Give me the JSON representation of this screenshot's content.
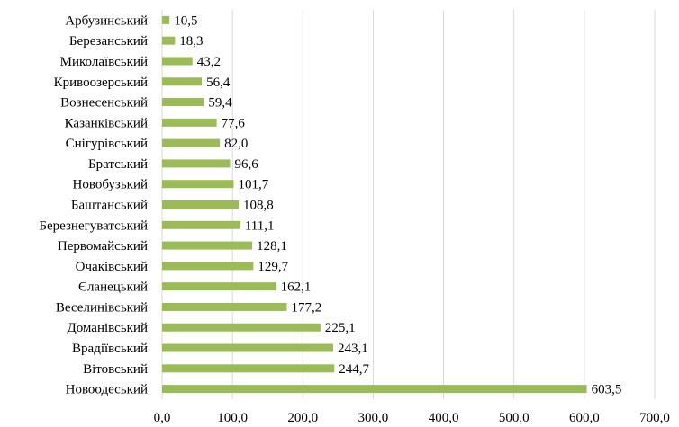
{
  "chart_data": {
    "type": "bar",
    "orientation": "horizontal",
    "categories": [
      "Арбузинський",
      "Березанський",
      "Миколаївський",
      "Кривоозерський",
      "Вознесенський",
      "Казанківський",
      "Снігурівський",
      "Братський",
      "Новобузький",
      "Баштанський",
      "Березнегуватський",
      "Первомайський",
      "Очаківський",
      "Єланецький",
      "Веселинівський",
      "Доманівський",
      "Врадіївський",
      "Вітовський",
      "Новоодеський"
    ],
    "values": [
      10.5,
      18.3,
      43.2,
      56.4,
      59.4,
      77.6,
      82.0,
      96.6,
      101.7,
      108.8,
      111.1,
      128.1,
      129.7,
      162.1,
      177.2,
      225.1,
      243.1,
      244.7,
      603.5
    ],
    "value_labels": [
      "10,5",
      "18,3",
      "43,2",
      "56,4",
      "59,4",
      "77,6",
      "82,0",
      "96,6",
      "101,7",
      "108,8",
      "111,1",
      "128,1",
      "129,7",
      "162,1",
      "177,2",
      "225,1",
      "243,1",
      "244,7",
      "603,5"
    ],
    "xlim": [
      0,
      700
    ],
    "x_ticks": [
      "0,0",
      "100,0",
      "200,0",
      "300,0",
      "400,0",
      "500,0",
      "600,0",
      "700,0"
    ],
    "title": "",
    "xlabel": "",
    "ylabel": "",
    "grid": "vertical",
    "legend": "none",
    "bar_color": "#9bbb59",
    "grid_color": "#d9d9d9"
  }
}
